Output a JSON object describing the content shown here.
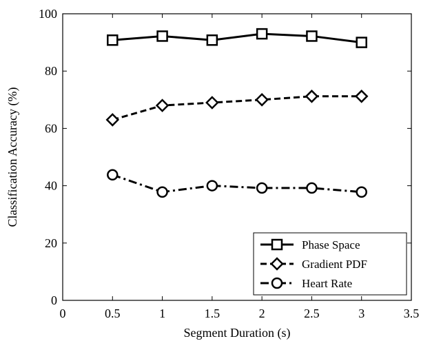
{
  "chart_data": {
    "type": "line",
    "title": "",
    "xlabel": "Segment Duration (s)",
    "ylabel": "Classification Accuracy (%)",
    "xlim": [
      0,
      3.5
    ],
    "ylim": [
      0,
      100
    ],
    "x_ticks": [
      0,
      0.5,
      1,
      1.5,
      2,
      2.5,
      3,
      3.5
    ],
    "x_tick_labels": [
      "0",
      "0.5",
      "1",
      "1.5",
      "2",
      "2.5",
      "3",
      "3.5"
    ],
    "y_ticks": [
      0,
      20,
      40,
      60,
      80,
      100
    ],
    "y_tick_labels": [
      "0",
      "20",
      "40",
      "60",
      "80",
      "100"
    ],
    "grid": false,
    "legend_position": "bottom-right",
    "x": [
      0.5,
      1,
      1.5,
      2,
      2.5,
      3
    ],
    "series": [
      {
        "name": "Phase Space",
        "values": [
          90.8,
          92.2,
          90.8,
          93.0,
          92.2,
          90.0
        ],
        "line_style": "solid",
        "marker": "square",
        "color": "#000000"
      },
      {
        "name": "Gradient PDF",
        "values": [
          63.0,
          68.0,
          69.0,
          70.0,
          71.2,
          71.2
        ],
        "line_style": "dashed",
        "marker": "diamond",
        "color": "#000000"
      },
      {
        "name": "Heart Rate",
        "values": [
          43.8,
          37.8,
          40.0,
          39.2,
          39.2,
          37.8
        ],
        "line_style": "dashdot",
        "marker": "circle",
        "color": "#000000"
      }
    ]
  }
}
